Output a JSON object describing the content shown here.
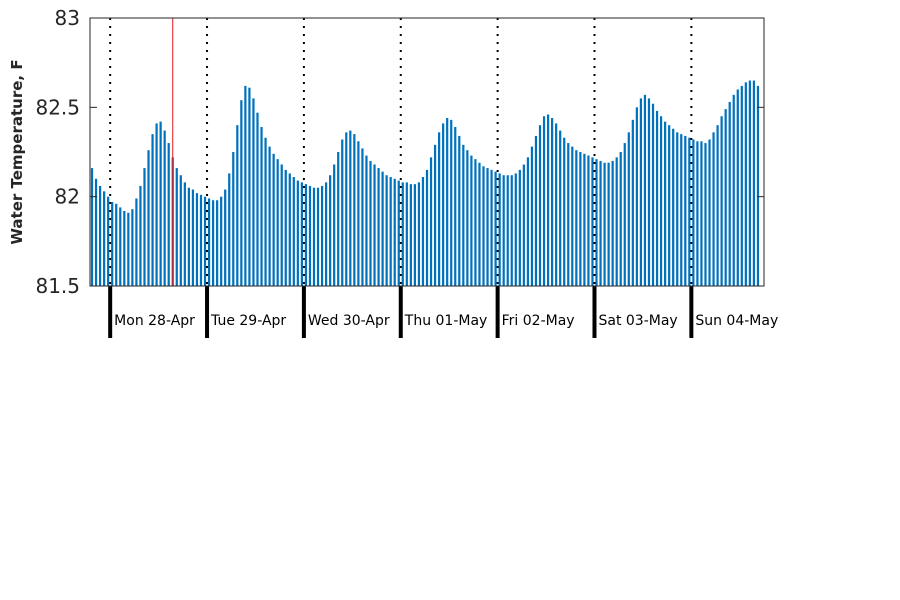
{
  "chart_data": {
    "type": "bar",
    "ylabel": "Water Temperature, F",
    "ylim": [
      81.5,
      83
    ],
    "yticks": [
      "81.5",
      "82",
      "82.5",
      "83"
    ],
    "x_start": "2014-04-27 19:00",
    "x_end": "2014-05-04 17:00",
    "bar_interval_hours": 1,
    "day_labels": [
      "Mon 28-Apr",
      "Tue 29-Apr",
      "Wed 30-Apr",
      "Thu 01-May",
      "Fri 02-May",
      "Sat 03-May",
      "Sun 04-May"
    ],
    "day_boundaries": [
      "2014-04-28 00:00",
      "2014-04-29 00:00",
      "2014-04-30 00:00",
      "2014-05-01 00:00",
      "2014-05-02 00:00",
      "2014-05-03 00:00",
      "2014-05-04 00:00"
    ],
    "current_time_marker": "2014-04-28 15:00",
    "bar_color": "#0072BD",
    "marker_color": "#e41a1c",
    "grid": false,
    "values": [
      82.16,
      82.1,
      82.06,
      82.03,
      82.0,
      81.97,
      81.96,
      81.94,
      81.92,
      81.91,
      81.93,
      81.99,
      82.06,
      82.16,
      82.26,
      82.35,
      82.41,
      82.42,
      82.37,
      82.3,
      82.22,
      82.16,
      82.12,
      82.08,
      82.05,
      82.04,
      82.02,
      82.01,
      82.0,
      81.99,
      81.98,
      81.98,
      82.0,
      82.04,
      82.13,
      82.25,
      82.4,
      82.54,
      82.62,
      82.61,
      82.55,
      82.47,
      82.39,
      82.33,
      82.28,
      82.24,
      82.21,
      82.18,
      82.15,
      82.13,
      82.11,
      82.09,
      82.08,
      82.07,
      82.06,
      82.05,
      82.05,
      82.06,
      82.08,
      82.12,
      82.18,
      82.25,
      82.32,
      82.36,
      82.37,
      82.35,
      82.31,
      82.27,
      82.23,
      82.2,
      82.18,
      82.16,
      82.14,
      82.12,
      82.11,
      82.1,
      82.09,
      82.08,
      82.08,
      82.07,
      82.07,
      82.08,
      82.11,
      82.15,
      82.22,
      82.29,
      82.36,
      82.41,
      82.44,
      82.43,
      82.39,
      82.34,
      82.29,
      82.26,
      82.23,
      82.21,
      82.19,
      82.17,
      82.16,
      82.15,
      82.14,
      82.13,
      82.12,
      82.12,
      82.12,
      82.13,
      82.15,
      82.18,
      82.22,
      82.28,
      82.34,
      82.4,
      82.45,
      82.46,
      82.44,
      82.41,
      82.37,
      82.33,
      82.3,
      82.28,
      82.26,
      82.25,
      82.24,
      82.23,
      82.22,
      82.21,
      82.2,
      82.19,
      82.19,
      82.2,
      82.22,
      82.25,
      82.3,
      82.36,
      82.43,
      82.5,
      82.55,
      82.57,
      82.55,
      82.52,
      82.48,
      82.45,
      82.42,
      82.4,
      82.38,
      82.36,
      82.35,
      82.34,
      82.33,
      82.32,
      82.31,
      82.31,
      82.3,
      82.32,
      82.36,
      82.4,
      82.45,
      82.49,
      82.53,
      82.57,
      82.6,
      82.62,
      82.64,
      82.65,
      82.65,
      82.62
    ]
  }
}
